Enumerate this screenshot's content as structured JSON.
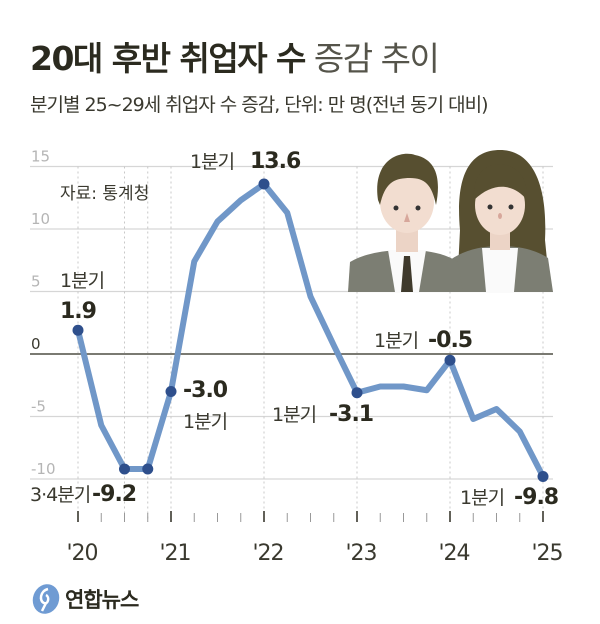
{
  "title_bold": "20대 후반 취업자 수",
  "title_light": "증감 추이",
  "subtitle": "분기별 25~29세 취업자 수 증감, 단위: 만 명(전년 동기 대비)",
  "source": "자료: 통계청",
  "logo_text": "연합뉴스",
  "colors": {
    "line": "#7097c8",
    "marker": "#2e4f8c",
    "text": "#2b2a1f",
    "grid": "#d6d6d6",
    "zero": "#2b2a1f"
  },
  "chart_data": {
    "type": "line",
    "title": "20대 후반 취업자 수 증감 추이",
    "ylabel": "",
    "xlabel": "",
    "ylim": [
      -10,
      15
    ],
    "yticks": [
      15,
      10,
      5,
      0,
      -5,
      -10
    ],
    "xticks": [
      "'20",
      "'21",
      "'22",
      "'23",
      "'24",
      "'25"
    ],
    "grid": true,
    "x": [
      "2020Q1",
      "2020Q2",
      "2020Q3",
      "2020Q4",
      "2021Q1",
      "2021Q2",
      "2021Q3",
      "2021Q4",
      "2022Q1",
      "2022Q2",
      "2022Q3",
      "2022Q4",
      "2023Q1",
      "2023Q2",
      "2023Q3",
      "2023Q4",
      "2024Q1",
      "2024Q2",
      "2024Q3",
      "2024Q4",
      "2025Q1"
    ],
    "values": [
      1.9,
      -5.7,
      -9.2,
      -9.2,
      -3.0,
      7.4,
      10.6,
      12.3,
      13.6,
      11.3,
      4.6,
      0.7,
      -3.1,
      -2.6,
      -2.6,
      -2.9,
      -0.5,
      -5.2,
      -4.4,
      -6.2,
      -9.8
    ],
    "markers": [
      0,
      2,
      3,
      4,
      8,
      12,
      16,
      20
    ],
    "annotations": [
      {
        "index": 0,
        "label": "1분기",
        "value": "1.9"
      },
      {
        "index": 2,
        "label": "3·4분기",
        "value": "-9.2"
      },
      {
        "index": 4,
        "label": "1분기",
        "value": "-3.0"
      },
      {
        "index": 8,
        "label": "1분기",
        "value": "13.6"
      },
      {
        "index": 12,
        "label": "1분기",
        "value": "-3.1"
      },
      {
        "index": 16,
        "label": "1분기",
        "value": "-0.5"
      },
      {
        "index": 20,
        "label": "1분기",
        "value": "-9.8"
      }
    ]
  }
}
